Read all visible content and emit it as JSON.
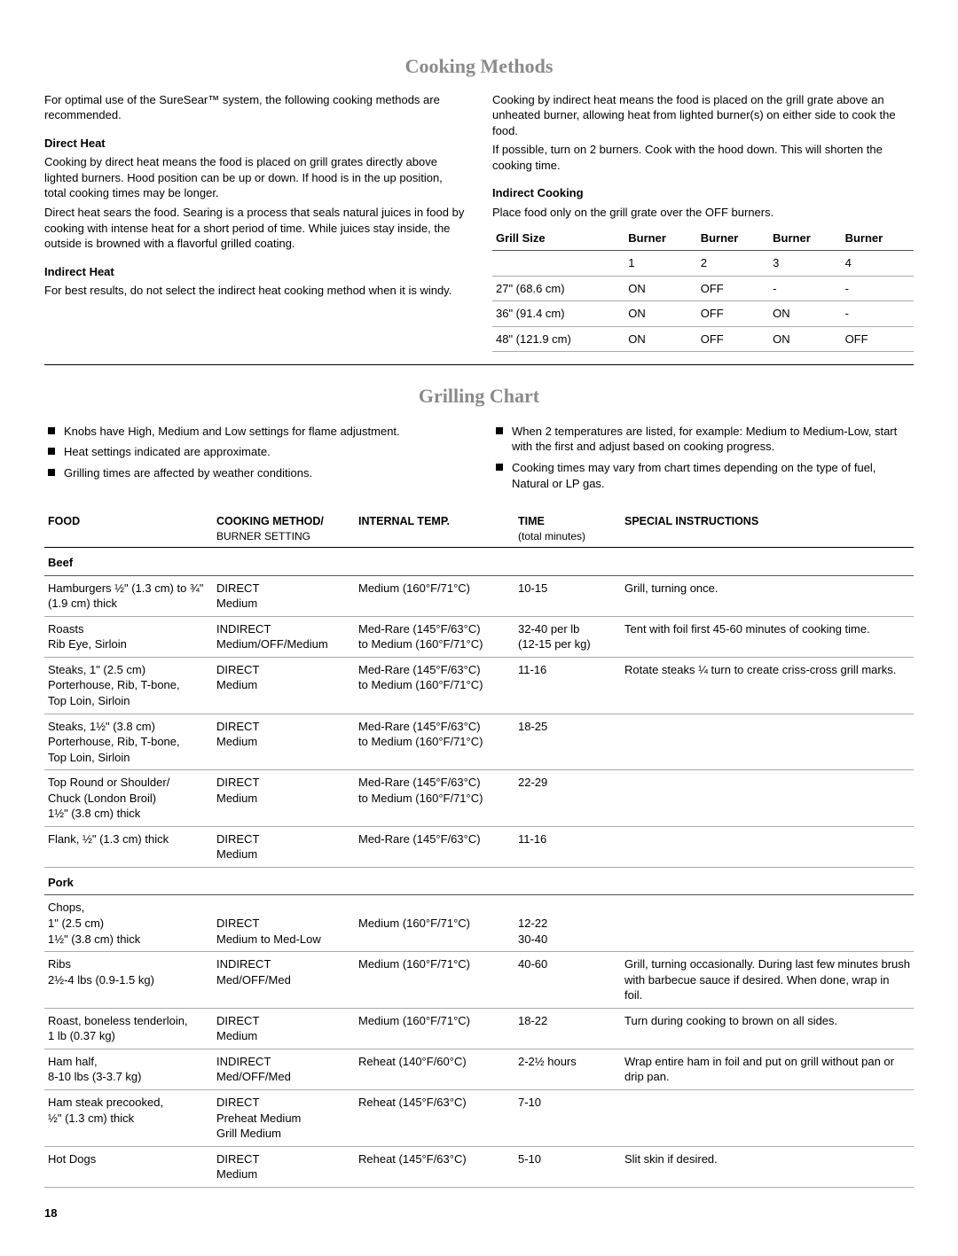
{
  "page_number": "18",
  "cooking_methods": {
    "title": "Cooking Methods",
    "intro_left": "For optimal use of the SureSear™ system, the following cooking methods are recommended.",
    "direct_heat_head": "Direct Heat",
    "direct_heat_p1": "Cooking by direct heat means the food is placed on grill grates directly above lighted burners. Hood position can be up or down. If hood is in the up position, total cooking times may be longer.",
    "direct_heat_p2": "Direct heat sears the food. Searing is a process that seals natural juices in food by cooking with intense heat for a short period of time. While juices stay inside, the outside is browned with a flavorful grilled coating.",
    "indirect_heat_head": "Indirect Heat",
    "indirect_heat_p1": "For best results, do not select the indirect heat cooking method when it is windy.",
    "intro_right_p1": "Cooking by indirect heat means the food is placed on the grill grate above an unheated burner, allowing heat from lighted burner(s) on either side to cook the food.",
    "intro_right_p2": "If possible, turn on 2 burners. Cook with the hood down. This will shorten the cooking time.",
    "indirect_cooking_head": "Indirect Cooking",
    "indirect_cooking_p1": "Place food only on the grill grate over the OFF burners.",
    "grill_table": {
      "headers": [
        "Grill Size",
        "Burner",
        "Burner",
        "Burner",
        "Burner"
      ],
      "subheaders": [
        "",
        "1",
        "2",
        "3",
        "4"
      ],
      "rows": [
        [
          "27\" (68.6 cm)",
          "ON",
          "OFF",
          "-",
          "-"
        ],
        [
          "36\" (91.4 cm)",
          "ON",
          "OFF",
          "ON",
          "-"
        ],
        [
          "48\" (121.9 cm)",
          "ON",
          "OFF",
          "ON",
          "OFF"
        ]
      ]
    }
  },
  "grilling_chart": {
    "title": "Grilling Chart",
    "bullets_left": [
      "Knobs have High, Medium and Low settings for flame adjustment.",
      "Heat settings indicated are approximate.",
      "Grilling times are affected by weather conditions."
    ],
    "bullets_right": [
      "When 2 temperatures are listed, for example: Medium to Medium-Low, start with the first and adjust based on cooking progress.",
      "Cooking times may vary from chart times depending on the type of fuel, Natural or LP gas."
    ],
    "columns": [
      "FOOD",
      "COOKING METHOD/\nBURNER SETTING",
      "INTERNAL TEMP.",
      "TIME\n(total minutes)",
      "SPECIAL INSTRUCTIONS"
    ],
    "col_sub": [
      "",
      "",
      "",
      "(total minutes)",
      ""
    ],
    "head_main": [
      "FOOD",
      "COOKING METHOD/",
      "INTERNAL TEMP.",
      "TIME",
      "SPECIAL INSTRUCTIONS"
    ],
    "head_sub": [
      "",
      "BURNER SETTING",
      "",
      "(total minutes)",
      ""
    ],
    "sections": [
      {
        "name": "Beef",
        "rows": [
          [
            "Hamburgers ½\" (1.3 cm) to ¾\" (1.9 cm) thick",
            "DIRECT\nMedium",
            "Medium (160°F/71°C)",
            "10-15",
            "Grill, turning once."
          ],
          [
            "Roasts\nRib Eye, Sirloin",
            "INDIRECT\nMedium/OFF/Medium",
            "Med-Rare (145°F/63°C)\nto Medium (160°F/71°C)",
            "32-40 per lb\n(12-15 per kg)",
            "Tent with foil first 45-60 minutes of cooking time."
          ],
          [
            "Steaks, 1\" (2.5 cm)\nPorterhouse, Rib, T-bone,\nTop Loin, Sirloin",
            "DIRECT\nMedium",
            "Med-Rare (145°F/63°C)\nto Medium (160°F/71°C)",
            "11-16",
            "Rotate steaks ¼ turn to create criss-cross grill marks."
          ],
          [
            "Steaks, 1½\" (3.8 cm)\nPorterhouse, Rib, T-bone,\nTop Loin, Sirloin",
            "DIRECT\nMedium",
            "Med-Rare (145°F/63°C)\nto Medium (160°F/71°C)",
            "18-25",
            ""
          ],
          [
            "Top Round or Shoulder/\nChuck (London Broil)\n1½\" (3.8 cm) thick",
            "DIRECT\nMedium",
            "Med-Rare (145°F/63°C)\nto Medium (160°F/71°C)",
            "22-29",
            ""
          ],
          [
            "Flank, ½\" (1.3 cm) thick",
            "DIRECT\nMedium",
            "Med-Rare (145°F/63°C)",
            "11-16",
            ""
          ]
        ]
      },
      {
        "name": "Pork",
        "rows": [
          [
            "Chops,\n1\" (2.5 cm)\n1½\" (3.8 cm) thick",
            "\nDIRECT\nMedium to Med-Low",
            "\nMedium (160°F/71°C)",
            "\n12-22\n30-40",
            ""
          ],
          [
            "Ribs\n2½-4 lbs (0.9-1.5 kg)",
            "INDIRECT\nMed/OFF/Med",
            "Medium (160°F/71°C)",
            "40-60",
            "Grill, turning occasionally. During last few minutes brush with barbecue sauce if desired. When done, wrap in foil."
          ],
          [
            "Roast, boneless tenderloin,\n1 lb (0.37 kg)",
            "DIRECT\nMedium",
            "Medium (160°F/71°C)",
            "18-22",
            "Turn during cooking to brown on all sides."
          ],
          [
            "Ham half,\n8-10 lbs (3-3.7 kg)",
            "INDIRECT\nMed/OFF/Med",
            "Reheat (140°F/60°C)",
            "2-2½ hours",
            "Wrap entire ham in foil and put on grill without pan or drip pan."
          ],
          [
            "Ham steak precooked,\n½\" (1.3 cm) thick",
            "DIRECT\nPreheat Medium\nGrill Medium",
            "Reheat (145°F/63°C)",
            "7-10",
            ""
          ],
          [
            "Hot Dogs",
            "DIRECT\nMedium",
            "Reheat (145°F/63°C)",
            "5-10",
            "Slit skin if desired."
          ]
        ]
      }
    ]
  }
}
